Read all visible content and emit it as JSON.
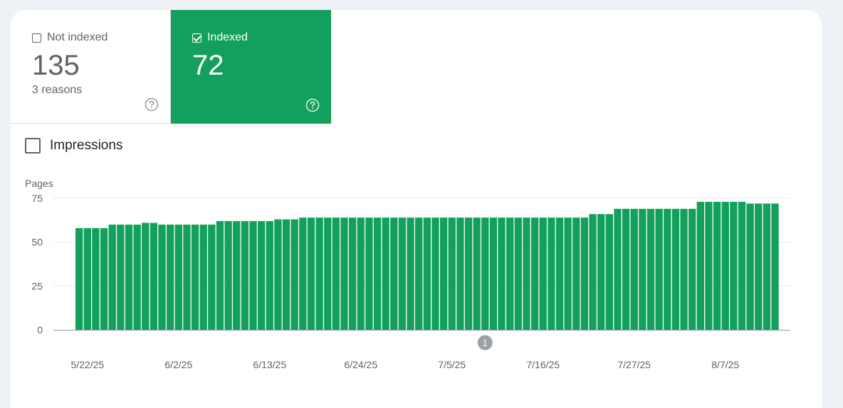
{
  "tiles": {
    "not_indexed": {
      "label": "Not indexed",
      "value": "135",
      "sub": "3 reasons",
      "checked": false
    },
    "indexed": {
      "label": "Indexed",
      "value": "72",
      "checked": true
    }
  },
  "impressions": {
    "label": "Impressions",
    "checked": false
  },
  "icons": {
    "help": "help-circle-icon"
  },
  "colors": {
    "accent": "#12a05c",
    "page_bg": "#eef2f7"
  },
  "annotation_marker": "1",
  "chart_data": {
    "type": "bar",
    "ylabel": "Pages",
    "ylim": [
      0,
      75
    ],
    "yticks": [
      0,
      25,
      50,
      75
    ],
    "grid": true,
    "x_tick_labels": [
      "5/22/25",
      "6/2/25",
      "6/13/25",
      "6/24/25",
      "7/5/25",
      "7/16/25",
      "7/27/25",
      "8/7/25"
    ],
    "x_tick_positions": [
      1,
      12,
      23,
      34,
      45,
      56,
      67,
      78
    ],
    "annotation": {
      "label": "1",
      "at_index": 49
    },
    "values": [
      58,
      58,
      58,
      58,
      60,
      60,
      60,
      60,
      61,
      61,
      60,
      60,
      60,
      60,
      60,
      60,
      60,
      62,
      62,
      62,
      62,
      62,
      62,
      62,
      63,
      63,
      63,
      64,
      64,
      64,
      64,
      64,
      64,
      64,
      64,
      64,
      64,
      64,
      64,
      64,
      64,
      64,
      64,
      64,
      64,
      64,
      64,
      64,
      64,
      64,
      64,
      64,
      64,
      64,
      64,
      64,
      64,
      64,
      64,
      64,
      64,
      64,
      66,
      66,
      66,
      69,
      69,
      69,
      69,
      69,
      69,
      69,
      69,
      69,
      69,
      73,
      73,
      73,
      73,
      73,
      73,
      72,
      72,
      72,
      72
    ],
    "color": "#12a05c"
  }
}
